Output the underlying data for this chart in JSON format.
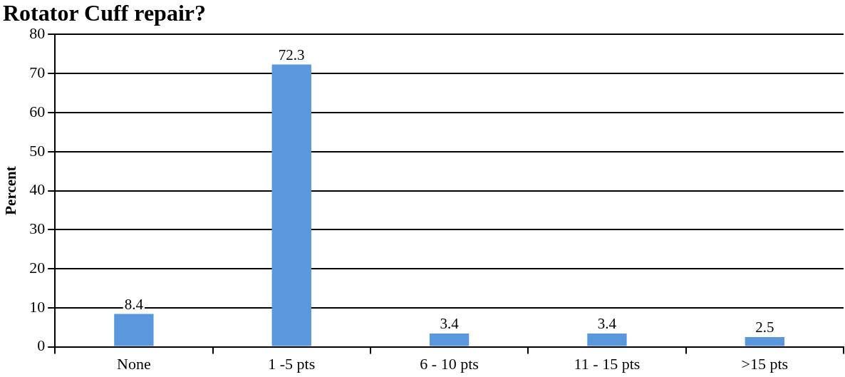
{
  "chart_data": {
    "type": "bar",
    "title": "Rotator Cuff repair?",
    "ylabel": "Percent",
    "categories": [
      "None",
      "1 -5 pts",
      "6 - 10 pts",
      "11 - 15 pts",
      ">15 pts"
    ],
    "values": [
      8.4,
      72.3,
      3.4,
      3.4,
      2.5
    ],
    "color": "#5b97dc",
    "ylim": [
      0,
      80
    ],
    "yticks": [
      0,
      10,
      20,
      30,
      40,
      50,
      60,
      70,
      80
    ],
    "grid": "y",
    "data_labels": true
  }
}
